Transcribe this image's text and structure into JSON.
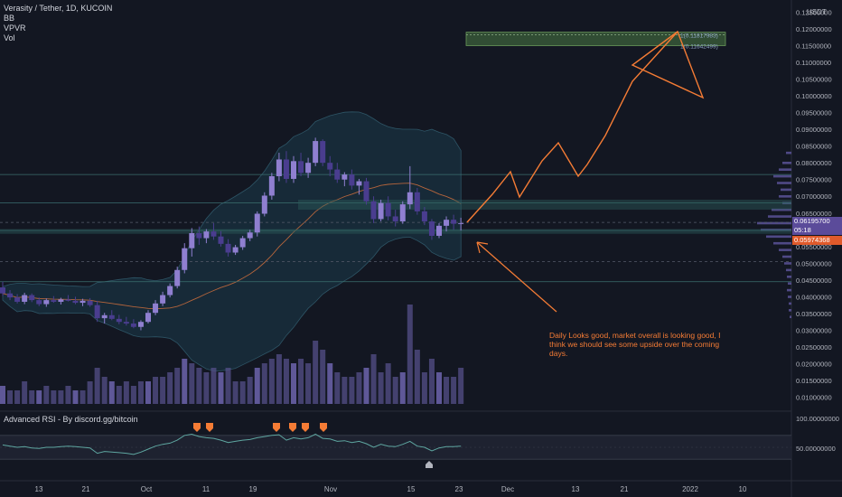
{
  "legend": {
    "symbol": "Verasity / Tether, 1D, KUCOIN",
    "indicators": [
      "BB",
      "VPVR",
      "Vol"
    ]
  },
  "price_axis": {
    "unit": "USDT",
    "labels": [
      "0.12500000",
      "0.12000000",
      "0.11500000",
      "0.11000000",
      "0.10500000",
      "0.10000000",
      "0.09500000",
      "0.09000000",
      "0.08500000",
      "0.08000000",
      "0.07500000",
      "0.07000000",
      "0.06500000",
      "0.06000000",
      "0.05500000",
      "0.05000000",
      "0.04500000",
      "0.04000000",
      "0.03500000",
      "0.03000000",
      "0.02500000",
      "0.02000000",
      "0.01500000",
      "0.01000000"
    ],
    "current_price": "0.06195700",
    "countdown": "05:18",
    "low_marker": "0.05974368"
  },
  "rsi": {
    "title": "Advanced RSI - By discord.gg/bitcoin",
    "axis_labels": [
      "100.00000000",
      "50.00000000"
    ]
  },
  "time_axis": {
    "labels": [
      "13",
      "21",
      "Oct",
      "11",
      "19",
      "Nov",
      "15",
      "23",
      "Dec",
      "13",
      "21",
      "2022",
      "10"
    ]
  },
  "annotations": {
    "note": "Daily Looks good, market overall is looking good, I think we should see some upside over the coming days.",
    "target_upper": "1(0.11817983)",
    "target_lower": "1(0.11642499)"
  },
  "colors": {
    "background": "#131722",
    "candle": "#8f7fd0",
    "candle_dark": "#4a3d8f",
    "volume": "#55508a",
    "bollinger_fill": "#1b3a4a",
    "arrow": "#f57c35",
    "target_box": "#4a7a44",
    "rsi_line": "#5ea6a0"
  },
  "chart_data": {
    "type": "candlestick",
    "ylim": [
      0.008,
      0.127
    ],
    "x_labels_index": [
      0,
      8,
      17,
      27,
      35,
      44,
      54,
      62
    ],
    "ohlc": [
      [
        0.0428,
        0.0445,
        0.0402,
        0.041
      ],
      [
        0.041,
        0.042,
        0.039,
        0.0398
      ],
      [
        0.0398,
        0.0408,
        0.038,
        0.0385
      ],
      [
        0.0385,
        0.0412,
        0.0378,
        0.0405
      ],
      [
        0.0405,
        0.041,
        0.0384,
        0.039
      ],
      [
        0.039,
        0.0398,
        0.0372,
        0.0378
      ],
      [
        0.0378,
        0.0395,
        0.037,
        0.039
      ],
      [
        0.039,
        0.0402,
        0.0382,
        0.0385
      ],
      [
        0.0385,
        0.0397,
        0.0377,
        0.0392
      ],
      [
        0.0392,
        0.0405,
        0.0386,
        0.0388
      ],
      [
        0.0388,
        0.04,
        0.0378,
        0.0382
      ],
      [
        0.0382,
        0.0394,
        0.0372,
        0.0388
      ],
      [
        0.0388,
        0.0396,
        0.037,
        0.0375
      ],
      [
        0.0375,
        0.0388,
        0.0325,
        0.0336
      ],
      [
        0.0336,
        0.0352,
        0.032,
        0.0345
      ],
      [
        0.0345,
        0.036,
        0.033,
        0.0334
      ],
      [
        0.0334,
        0.0346,
        0.0318,
        0.0325
      ],
      [
        0.0325,
        0.034,
        0.0314,
        0.032
      ],
      [
        0.032,
        0.0333,
        0.0306,
        0.031
      ],
      [
        0.031,
        0.033,
        0.03,
        0.0325
      ],
      [
        0.0325,
        0.036,
        0.032,
        0.0352
      ],
      [
        0.0352,
        0.039,
        0.0345,
        0.038
      ],
      [
        0.038,
        0.0415,
        0.0372,
        0.0405
      ],
      [
        0.0405,
        0.044,
        0.0398,
        0.0432
      ],
      [
        0.0432,
        0.049,
        0.0425,
        0.048
      ],
      [
        0.048,
        0.056,
        0.047,
        0.0545
      ],
      [
        0.0545,
        0.0605,
        0.052,
        0.059
      ],
      [
        0.059,
        0.061,
        0.0555,
        0.0575
      ],
      [
        0.0575,
        0.0602,
        0.056,
        0.0595
      ],
      [
        0.0595,
        0.062,
        0.057,
        0.058
      ],
      [
        0.058,
        0.0596,
        0.055,
        0.0558
      ],
      [
        0.0558,
        0.0572,
        0.052,
        0.0532
      ],
      [
        0.0532,
        0.0555,
        0.0525,
        0.0548
      ],
      [
        0.0548,
        0.0582,
        0.054,
        0.0575
      ],
      [
        0.0575,
        0.06,
        0.0566,
        0.0592
      ],
      [
        0.0592,
        0.0655,
        0.058,
        0.0648
      ],
      [
        0.0648,
        0.0712,
        0.064,
        0.0702
      ],
      [
        0.0702,
        0.077,
        0.069,
        0.076
      ],
      [
        0.076,
        0.083,
        0.0745,
        0.081
      ],
      [
        0.081,
        0.0835,
        0.074,
        0.0752
      ],
      [
        0.0752,
        0.082,
        0.074,
        0.0805
      ],
      [
        0.0805,
        0.083,
        0.076,
        0.077
      ],
      [
        0.077,
        0.0815,
        0.0755,
        0.08
      ],
      [
        0.08,
        0.0875,
        0.079,
        0.0865
      ],
      [
        0.0865,
        0.087,
        0.079,
        0.08
      ],
      [
        0.08,
        0.082,
        0.076,
        0.078
      ],
      [
        0.078,
        0.08,
        0.074,
        0.075
      ],
      [
        0.075,
        0.0772,
        0.073,
        0.0765
      ],
      [
        0.0765,
        0.078,
        0.072,
        0.0732
      ],
      [
        0.0732,
        0.0752,
        0.0705,
        0.0745
      ],
      [
        0.0745,
        0.0755,
        0.0675,
        0.0685
      ],
      [
        0.0685,
        0.07,
        0.062,
        0.0632
      ],
      [
        0.0632,
        0.069,
        0.0625,
        0.068
      ],
      [
        0.068,
        0.07,
        0.0628,
        0.064
      ],
      [
        0.064,
        0.066,
        0.061,
        0.0625
      ],
      [
        0.0625,
        0.0685,
        0.0618,
        0.0676
      ],
      [
        0.0676,
        0.079,
        0.0662,
        0.0712
      ],
      [
        0.0712,
        0.0725,
        0.0645,
        0.0655
      ],
      [
        0.0655,
        0.0668,
        0.0614,
        0.0625
      ],
      [
        0.0625,
        0.0632,
        0.057,
        0.0582
      ],
      [
        0.0582,
        0.062,
        0.0575,
        0.0612
      ],
      [
        0.0612,
        0.064,
        0.0595,
        0.063
      ],
      [
        0.063,
        0.0645,
        0.06,
        0.0618
      ],
      [
        0.0618,
        0.0636,
        0.0598,
        0.062
      ]
    ],
    "volume": [
      4,
      3,
      3,
      5,
      3,
      3,
      4,
      3,
      3,
      4,
      3,
      3,
      5,
      8,
      6,
      5,
      4,
      5,
      4,
      5,
      5,
      6,
      6,
      7,
      8,
      10,
      9,
      8,
      7,
      8,
      7,
      8,
      5,
      5,
      6,
      8,
      9,
      10,
      11,
      10,
      9,
      10,
      9,
      14,
      12,
      9,
      7,
      6,
      6,
      7,
      8,
      11,
      7,
      9,
      6,
      7,
      22,
      12,
      7,
      10,
      7,
      6,
      6,
      8
    ],
    "rsi": [
      54,
      52,
      50,
      51,
      49,
      48,
      50,
      50,
      51,
      52,
      51,
      50,
      49,
      40,
      43,
      42,
      41,
      40,
      38,
      42,
      47,
      52,
      55,
      57,
      62,
      70,
      72,
      68,
      66,
      65,
      62,
      58,
      60,
      62,
      63,
      66,
      68,
      70,
      71,
      62,
      66,
      64,
      66,
      72,
      65,
      64,
      60,
      61,
      58,
      60,
      56,
      50,
      55,
      52,
      51,
      55,
      60,
      52,
      50,
      44,
      49,
      51,
      51,
      52
    ]
  }
}
